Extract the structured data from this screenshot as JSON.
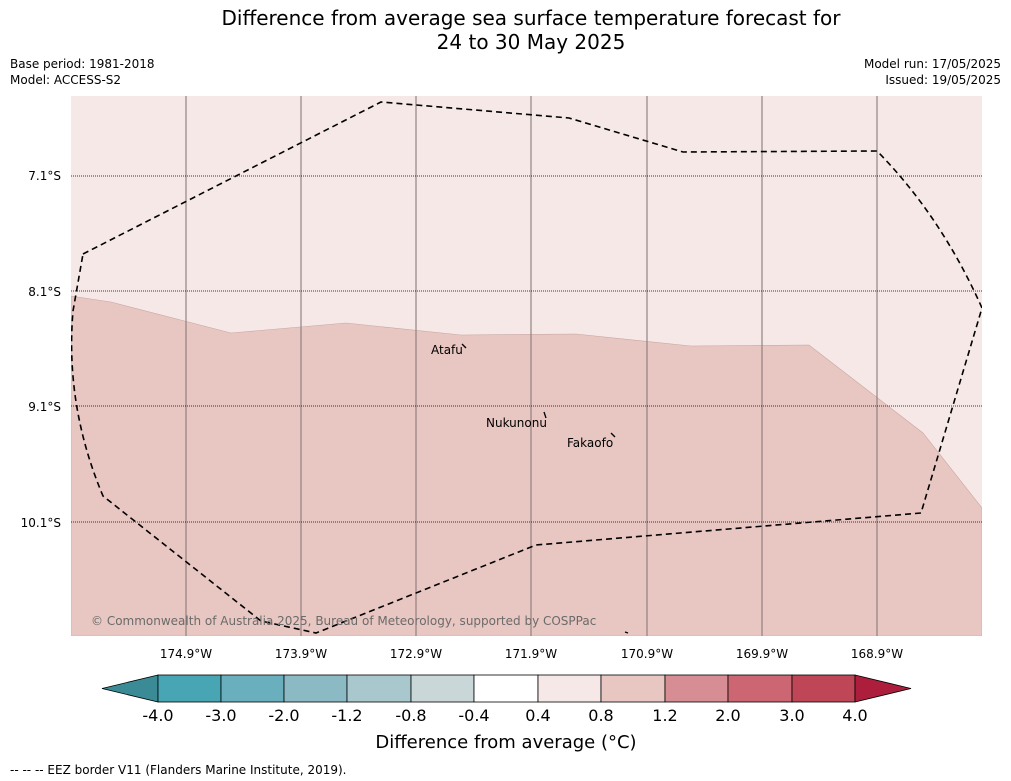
{
  "title_line1": "Difference from average sea surface temperature forecast for",
  "title_line2": "24 to 30 May 2025",
  "base_period": "Base period: 1981-2018",
  "model": "Model: ACCESS-S2",
  "model_run": "Model run: 17/05/2025",
  "issued": "Issued: 19/05/2025",
  "lat_labels": [
    "7.1°S",
    "8.1°S",
    "9.1°S",
    "10.1°S"
  ],
  "lon_labels": [
    "174.9°W",
    "173.9°W",
    "172.9°W",
    "171.9°W",
    "170.9°W",
    "169.9°W",
    "168.9°W"
  ],
  "places": {
    "atafu": "Atafu",
    "nukunonu": "Nukunonu",
    "fakaofo": "Fakaofo"
  },
  "copyright": "© Commonwealth of Australia 2025, Bureau of Meteorology, supported by COSPPac",
  "colorbar": {
    "ticks": [
      "-4.0",
      "-3.0",
      "-2.0",
      "-1.2",
      "-0.8",
      "-0.4",
      "0.4",
      "0.8",
      "1.2",
      "2.0",
      "3.0",
      "4.0"
    ],
    "colors": [
      "#3b8b96",
      "#47a5b4",
      "#6aafbd",
      "#8bbac5",
      "#a8c8cd",
      "#c9d7d8",
      "#ffffff",
      "#f5e8e6",
      "#e8c6c1",
      "#d68e94",
      "#cc6672",
      "#bf4657",
      "#ad1e3c"
    ],
    "title": "Difference from average (°C)"
  },
  "map_colors": {
    "anomaly_0_4_to_0_8": "#f5e8e6",
    "anomaly_0_8_to_1_2": "#e8c6c1"
  },
  "footnote": "--  --  -- EEZ border V11 (Flanders Marine Institute, 2019)."
}
